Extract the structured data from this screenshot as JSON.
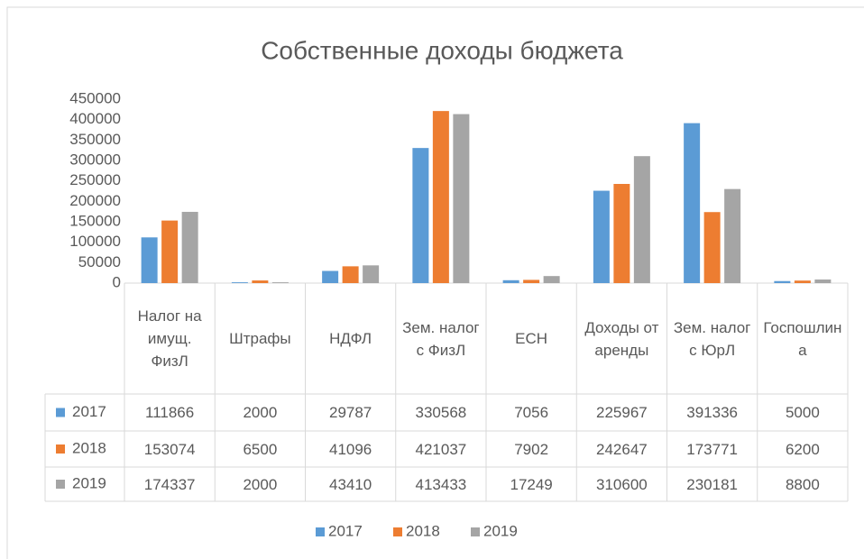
{
  "chart_data": {
    "type": "bar",
    "title": "Собственные доходы бюджета",
    "categories": [
      "Налог на имущ. ФизЛ",
      "Штрафы",
      "НДФЛ",
      "Зем. налог с ФизЛ",
      "ЕСН",
      "Доходы от аренды",
      "Зем. налог с ЮрЛ",
      "Госпошлина"
    ],
    "series": [
      {
        "name": "2017",
        "color": "#5b9bd5",
        "values": [
          111866,
          2000,
          29787,
          330568,
          7056,
          225967,
          391336,
          5000
        ]
      },
      {
        "name": "2018",
        "color": "#ed7d31",
        "values": [
          153074,
          6500,
          41096,
          421037,
          7902,
          242647,
          173771,
          6200
        ]
      },
      {
        "name": "2019",
        "color": "#a5a5a5",
        "values": [
          174337,
          2000,
          43410,
          413433,
          17249,
          310600,
          230181,
          8800
        ]
      }
    ],
    "ylim": [
      0,
      450000
    ],
    "yticks": [
      0,
      50000,
      100000,
      150000,
      200000,
      250000,
      300000,
      350000,
      400000,
      450000
    ],
    "grid": false,
    "legend": "bottom"
  }
}
